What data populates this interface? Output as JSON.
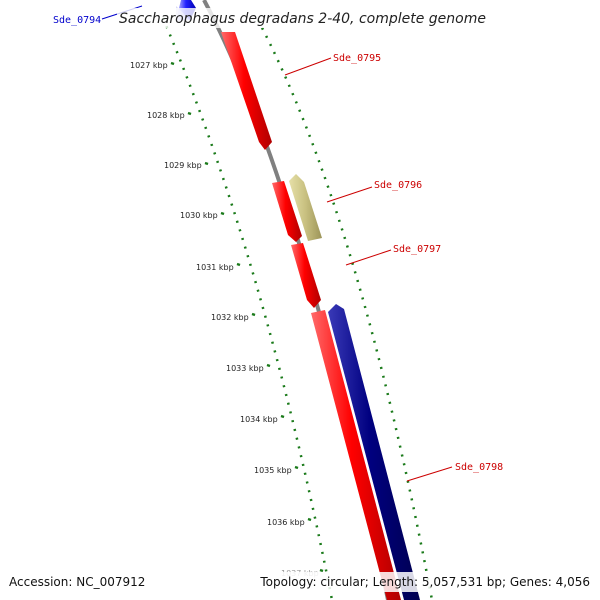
{
  "map": {
    "title": "Saccharophagus degradans 2-40, complete genome",
    "backbone_color": "#808080",
    "tick_color": "#1a7a1a",
    "scale_labels": [
      "1027 kbp",
      "1028 kbp",
      "1029 kbp",
      "1030 kbp",
      "1031 kbp",
      "1032 kbp",
      "1033 kbp",
      "1034 kbp",
      "1035 kbp",
      "1036 kbp",
      "1037 kbp"
    ],
    "genes": [
      {
        "id": "Sde_0794",
        "color": "#0000cc",
        "label_color": "#0000cc",
        "strand": "reverse"
      },
      {
        "id": "Sde_0795",
        "color": "#ff0000",
        "label_color": "#cc0000",
        "strand": "forward"
      },
      {
        "id": "Sde_0796",
        "color": "#c8c080",
        "label_color": "#cc0000",
        "strand": "reverse"
      },
      {
        "id": "Sde_0797",
        "color": "#ff0000",
        "label_color": "#cc0000",
        "strand": "forward"
      },
      {
        "id": "Sde_0798",
        "color": "#000080",
        "label_color": "#cc0000",
        "strand": "reverse"
      }
    ]
  },
  "footer": {
    "accession": "Accession: NC_007912",
    "summary": "Topology: circular; Length: 5,057,531 bp; Genes: 4,056"
  }
}
